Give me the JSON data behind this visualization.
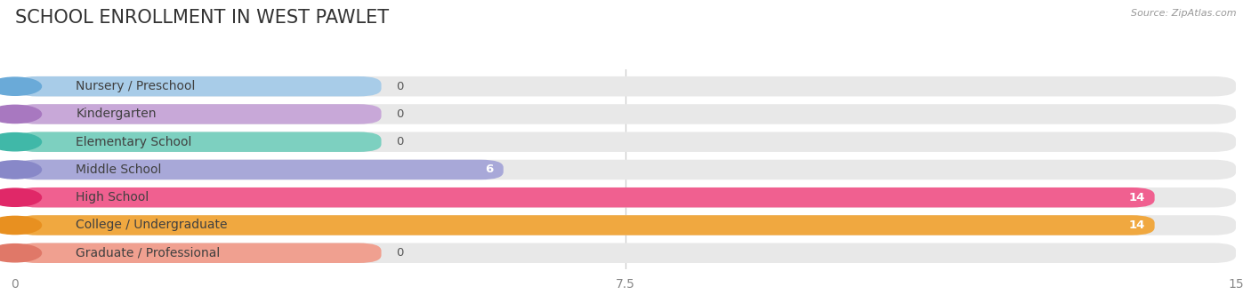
{
  "title": "SCHOOL ENROLLMENT IN WEST PAWLET",
  "source": "Source: ZipAtlas.com",
  "categories": [
    "Nursery / Preschool",
    "Kindergarten",
    "Elementary School",
    "Middle School",
    "High School",
    "College / Undergraduate",
    "Graduate / Professional"
  ],
  "values": [
    0,
    0,
    0,
    6,
    14,
    14,
    0
  ],
  "bar_colors": [
    "#a8cce8",
    "#c8a8d8",
    "#7dd0c0",
    "#a8a8d8",
    "#f06090",
    "#f0a840",
    "#f0a090"
  ],
  "circle_colors": [
    "#6aaad8",
    "#a878c0",
    "#40b8a8",
    "#8888c8",
    "#e02868",
    "#e89020",
    "#e07868"
  ],
  "xlim": [
    0,
    15
  ],
  "xticks": [
    0,
    7.5,
    15
  ],
  "background_color": "#ffffff",
  "bar_bg_color": "#e8e8e8",
  "title_fontsize": 15,
  "label_fontsize": 10,
  "value_fontsize": 9.5
}
